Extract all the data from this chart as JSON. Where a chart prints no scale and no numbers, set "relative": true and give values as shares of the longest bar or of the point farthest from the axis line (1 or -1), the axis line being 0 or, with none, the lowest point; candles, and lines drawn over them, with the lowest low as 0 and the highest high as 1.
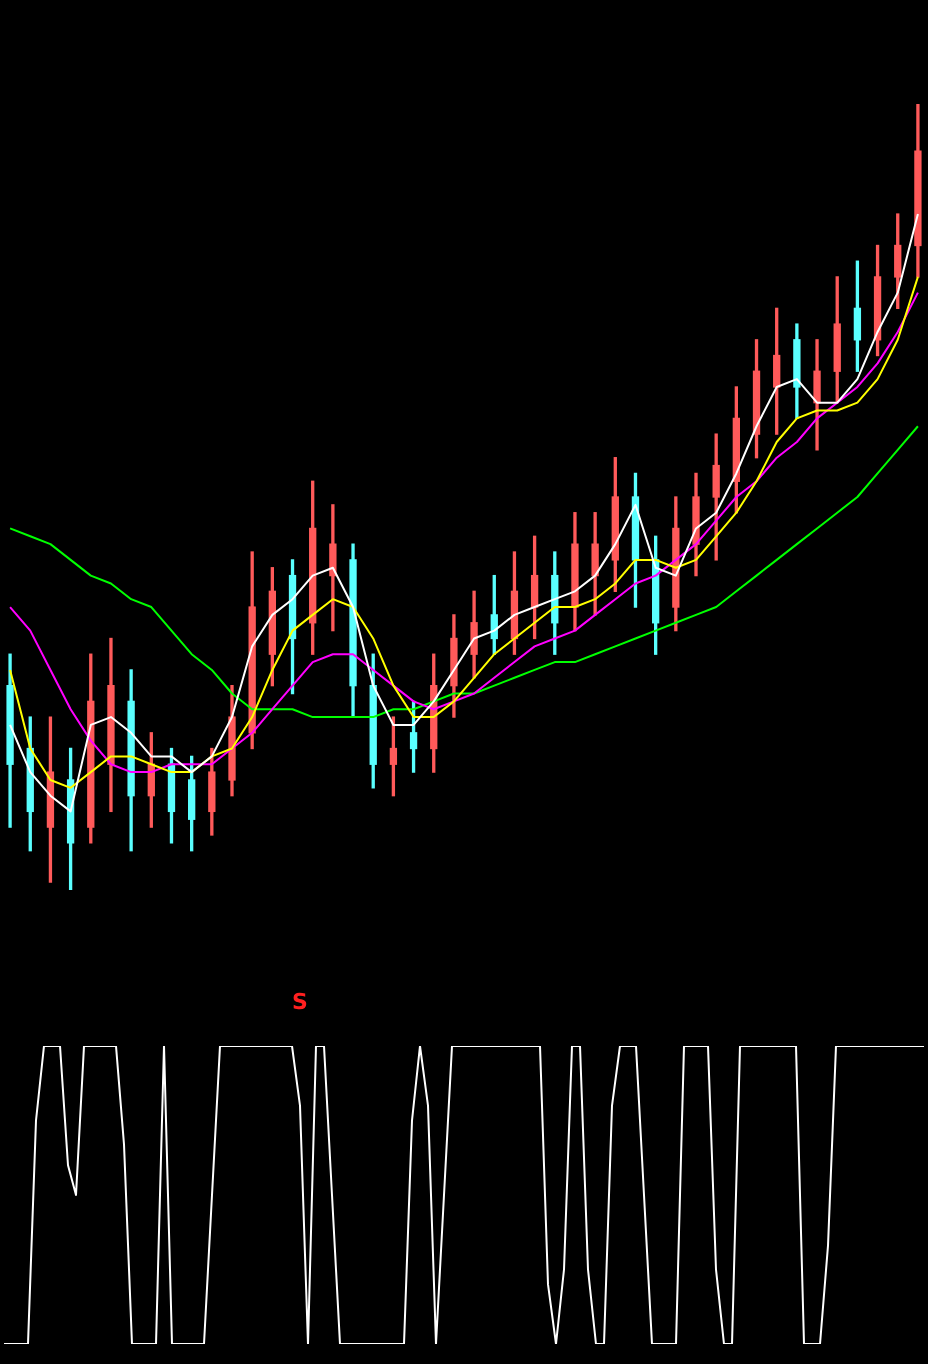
{
  "chart_data": [
    {
      "type": "candlestick",
      "relative": true,
      "categories": [
        null,
        null,
        null,
        null,
        null,
        null,
        null,
        null,
        null,
        null,
        null,
        null,
        null,
        null,
        null,
        null,
        null,
        null,
        null,
        null,
        null,
        null,
        null,
        null,
        null,
        null,
        null,
        null,
        null,
        null,
        null,
        null,
        null,
        null,
        null,
        null,
        null,
        null,
        null,
        null,
        null,
        null,
        null,
        null,
        null,
        null
      ],
      "ohlc": [
        [
          0.26,
          0.3,
          0.08,
          0.16
        ],
        [
          0.18,
          0.22,
          0.05,
          0.1
        ],
        [
          0.08,
          0.22,
          0.01,
          0.15
        ],
        [
          0.14,
          0.18,
          0.0,
          0.06
        ],
        [
          0.08,
          0.3,
          0.06,
          0.24
        ],
        [
          0.16,
          0.32,
          0.1,
          0.26
        ],
        [
          0.24,
          0.28,
          0.05,
          0.12
        ],
        [
          0.12,
          0.2,
          0.08,
          0.16
        ],
        [
          0.16,
          0.18,
          0.06,
          0.1
        ],
        [
          0.14,
          0.17,
          0.05,
          0.09
        ],
        [
          0.1,
          0.18,
          0.07,
          0.15
        ],
        [
          0.14,
          0.26,
          0.12,
          0.22
        ],
        [
          0.2,
          0.43,
          0.18,
          0.36
        ],
        [
          0.3,
          0.41,
          0.26,
          0.38
        ],
        [
          0.4,
          0.42,
          0.25,
          0.32
        ],
        [
          0.34,
          0.52,
          0.3,
          0.46
        ],
        [
          0.4,
          0.49,
          0.33,
          0.44
        ],
        [
          0.42,
          0.44,
          0.22,
          0.26
        ],
        [
          0.26,
          0.3,
          0.13,
          0.16
        ],
        [
          0.16,
          0.22,
          0.12,
          0.18
        ],
        [
          0.2,
          0.24,
          0.15,
          0.18
        ],
        [
          0.18,
          0.3,
          0.15,
          0.26
        ],
        [
          0.26,
          0.35,
          0.22,
          0.32
        ],
        [
          0.3,
          0.38,
          0.27,
          0.34
        ],
        [
          0.35,
          0.4,
          0.3,
          0.32
        ],
        [
          0.32,
          0.43,
          0.3,
          0.38
        ],
        [
          0.36,
          0.45,
          0.32,
          0.4
        ],
        [
          0.4,
          0.43,
          0.3,
          0.34
        ],
        [
          0.36,
          0.48,
          0.33,
          0.44
        ],
        [
          0.4,
          0.48,
          0.35,
          0.44
        ],
        [
          0.42,
          0.55,
          0.38,
          0.5
        ],
        [
          0.5,
          0.53,
          0.36,
          0.42
        ],
        [
          0.42,
          0.45,
          0.3,
          0.34
        ],
        [
          0.36,
          0.5,
          0.33,
          0.46
        ],
        [
          0.44,
          0.53,
          0.4,
          0.5
        ],
        [
          0.5,
          0.58,
          0.42,
          0.54
        ],
        [
          0.52,
          0.64,
          0.48,
          0.6
        ],
        [
          0.58,
          0.7,
          0.55,
          0.66
        ],
        [
          0.64,
          0.74,
          0.58,
          0.68
        ],
        [
          0.7,
          0.72,
          0.6,
          0.64
        ],
        [
          0.62,
          0.7,
          0.56,
          0.66
        ],
        [
          0.66,
          0.78,
          0.62,
          0.72
        ],
        [
          0.74,
          0.8,
          0.66,
          0.7
        ],
        [
          0.7,
          0.82,
          0.68,
          0.78
        ],
        [
          0.78,
          0.86,
          0.74,
          0.82
        ],
        [
          0.82,
          1.0,
          0.78,
          0.94
        ]
      ],
      "series": [
        {
          "type": "line",
          "color": "#ffffff",
          "values": [
            0.21,
            0.15,
            0.12,
            0.1,
            0.21,
            0.22,
            0.2,
            0.17,
            0.17,
            0.15,
            0.17,
            0.22,
            0.31,
            0.35,
            0.37,
            0.4,
            0.41,
            0.36,
            0.26,
            0.21,
            0.21,
            0.24,
            0.28,
            0.32,
            0.33,
            0.35,
            0.36,
            0.37,
            0.38,
            0.4,
            0.44,
            0.49,
            0.41,
            0.4,
            0.46,
            0.48,
            0.53,
            0.59,
            0.64,
            0.65,
            0.62,
            0.62,
            0.65,
            0.71,
            0.76,
            0.86
          ]
        },
        {
          "type": "line",
          "color": "#ffff00",
          "values": [
            0.28,
            0.18,
            0.14,
            0.13,
            0.15,
            0.17,
            0.17,
            0.16,
            0.15,
            0.15,
            0.17,
            0.18,
            0.22,
            0.28,
            0.33,
            0.35,
            0.37,
            0.36,
            0.32,
            0.26,
            0.22,
            0.22,
            0.24,
            0.27,
            0.3,
            0.32,
            0.34,
            0.36,
            0.36,
            0.37,
            0.39,
            0.42,
            0.42,
            0.41,
            0.42,
            0.45,
            0.48,
            0.52,
            0.57,
            0.6,
            0.61,
            0.61,
            0.62,
            0.65,
            0.7,
            0.78
          ]
        },
        {
          "type": "line",
          "color": "#ff00ff",
          "values": [
            0.36,
            0.33,
            0.28,
            0.23,
            0.19,
            0.16,
            0.15,
            0.15,
            0.16,
            0.16,
            0.16,
            0.18,
            0.2,
            0.23,
            0.26,
            0.29,
            0.3,
            0.3,
            0.28,
            0.26,
            0.24,
            0.23,
            0.24,
            0.25,
            0.27,
            0.29,
            0.31,
            0.32,
            0.33,
            0.35,
            0.37,
            0.39,
            0.4,
            0.42,
            0.44,
            0.47,
            0.5,
            0.52,
            0.55,
            0.57,
            0.6,
            0.62,
            0.64,
            0.67,
            0.71,
            0.76
          ]
        },
        {
          "type": "line",
          "color": "#00ff00",
          "values": [
            0.46,
            0.45,
            0.44,
            0.42,
            0.4,
            0.39,
            0.37,
            0.36,
            0.33,
            0.3,
            0.28,
            0.25,
            0.23,
            0.23,
            0.23,
            0.22,
            0.22,
            0.22,
            0.22,
            0.23,
            0.23,
            0.24,
            0.25,
            0.25,
            0.26,
            0.27,
            0.28,
            0.29,
            0.29,
            0.3,
            0.31,
            0.32,
            0.33,
            0.34,
            0.35,
            0.36,
            0.38,
            0.4,
            0.42,
            0.44,
            0.46,
            0.48,
            0.5,
            0.53,
            0.56,
            0.59
          ]
        }
      ]
    },
    {
      "type": "line",
      "relative": true,
      "color": "#ffffff",
      "annotations": [
        "S"
      ],
      "categories": [
        null,
        null,
        null,
        null,
        null,
        null,
        null,
        null,
        null,
        null,
        null,
        null,
        null,
        null,
        null,
        null,
        null,
        null,
        null,
        null,
        null,
        null,
        null,
        null,
        null,
        null,
        null,
        null,
        null,
        null,
        null,
        null,
        null,
        null,
        null,
        null,
        null,
        null,
        null,
        null,
        null,
        null,
        null,
        null,
        null,
        null,
        null,
        null,
        null,
        null,
        null,
        null,
        null,
        null,
        null,
        null,
        null,
        null,
        null,
        null,
        null,
        null,
        null,
        null,
        null,
        null,
        null,
        null,
        null,
        null,
        null,
        null,
        null,
        null,
        null,
        null,
        null,
        null,
        null,
        null,
        null,
        null,
        null,
        null,
        null,
        null,
        null,
        null,
        null,
        null,
        null,
        null,
        null,
        null,
        null,
        null,
        null,
        null,
        null,
        null,
        null,
        null,
        null,
        null,
        null,
        null,
        null,
        null,
        null,
        null,
        null,
        null,
        null,
        null,
        null,
        null
      ],
      "values": [
        0,
        0,
        0,
        0,
        0.75,
        1,
        1,
        1,
        0.6,
        0.5,
        1,
        1,
        1,
        1,
        1,
        0.67,
        0,
        0,
        0,
        0,
        1,
        0,
        0,
        0,
        0,
        0,
        0.5,
        1,
        1,
        1,
        1,
        1,
        1,
        1,
        1,
        1,
        1,
        0.8,
        0,
        1,
        1,
        0.5,
        0,
        0,
        0,
        0,
        0,
        0,
        0,
        0,
        0,
        0.75,
        1,
        0.8,
        0,
        0.5,
        1,
        1,
        1,
        1,
        1,
        1,
        1,
        1,
        1,
        1,
        1,
        1,
        0.2,
        0,
        0.25,
        1,
        1,
        0.25,
        0,
        0,
        0.8,
        1,
        1,
        1,
        0.5,
        0,
        0,
        0,
        0,
        1,
        1,
        1,
        1,
        0.25,
        0,
        0,
        1,
        1,
        1,
        1,
        1,
        1,
        1,
        1,
        0,
        0,
        0,
        0.33,
        1,
        1,
        1,
        1,
        1,
        1,
        1,
        1,
        1,
        1,
        1,
        1
      ]
    }
  ]
}
